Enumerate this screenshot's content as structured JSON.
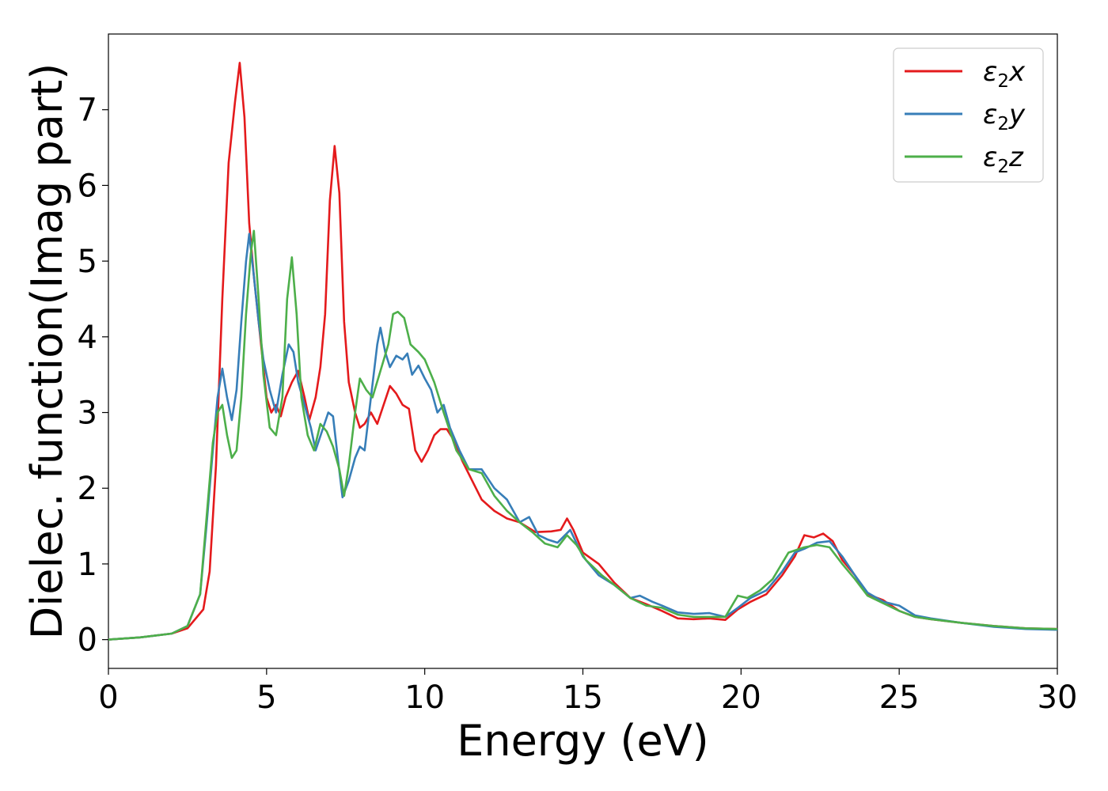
{
  "chart_data": {
    "type": "line",
    "title": "",
    "xlabel": "Energy (eV)",
    "ylabel": "Dielec. function(Imag part)",
    "xlim": [
      0,
      30
    ],
    "ylim": [
      -0.38,
      8.0
    ],
    "xticks": [
      0,
      5,
      10,
      15,
      20,
      25,
      30
    ],
    "yticks": [
      0,
      1,
      2,
      3,
      4,
      5,
      6,
      7
    ],
    "grid": false,
    "legend_position": "top-right",
    "series": [
      {
        "name": "ε₂x",
        "legend_main": "ε",
        "legend_sub": "2",
        "legend_axis": "x",
        "color": "#e41a1c",
        "points": [
          [
            0,
            0.0
          ],
          [
            1,
            0.03
          ],
          [
            2,
            0.08
          ],
          [
            2.5,
            0.15
          ],
          [
            3.0,
            0.4
          ],
          [
            3.2,
            0.9
          ],
          [
            3.4,
            2.3
          ],
          [
            3.6,
            4.5
          ],
          [
            3.8,
            6.3
          ],
          [
            4.0,
            7.1
          ],
          [
            4.15,
            7.62
          ],
          [
            4.3,
            6.9
          ],
          [
            4.45,
            5.5
          ],
          [
            4.6,
            4.8
          ],
          [
            4.8,
            4.0
          ],
          [
            5.0,
            3.2
          ],
          [
            5.15,
            3.0
          ],
          [
            5.3,
            3.1
          ],
          [
            5.45,
            2.95
          ],
          [
            5.6,
            3.2
          ],
          [
            5.8,
            3.4
          ],
          [
            6.0,
            3.55
          ],
          [
            6.2,
            3.2
          ],
          [
            6.35,
            2.9
          ],
          [
            6.55,
            3.2
          ],
          [
            6.7,
            3.6
          ],
          [
            6.85,
            4.3
          ],
          [
            7.0,
            5.8
          ],
          [
            7.15,
            6.52
          ],
          [
            7.3,
            5.9
          ],
          [
            7.45,
            4.2
          ],
          [
            7.6,
            3.4
          ],
          [
            7.8,
            3.0
          ],
          [
            7.95,
            2.8
          ],
          [
            8.1,
            2.85
          ],
          [
            8.3,
            3.0
          ],
          [
            8.5,
            2.85
          ],
          [
            8.7,
            3.1
          ],
          [
            8.9,
            3.35
          ],
          [
            9.1,
            3.25
          ],
          [
            9.3,
            3.1
          ],
          [
            9.5,
            3.05
          ],
          [
            9.7,
            2.5
          ],
          [
            9.9,
            2.35
          ],
          [
            10.1,
            2.5
          ],
          [
            10.3,
            2.7
          ],
          [
            10.5,
            2.78
          ],
          [
            10.7,
            2.78
          ],
          [
            10.9,
            2.65
          ],
          [
            11.2,
            2.35
          ],
          [
            11.5,
            2.1
          ],
          [
            11.8,
            1.85
          ],
          [
            12.2,
            1.7
          ],
          [
            12.6,
            1.6
          ],
          [
            13.0,
            1.55
          ],
          [
            13.5,
            1.42
          ],
          [
            14.0,
            1.43
          ],
          [
            14.3,
            1.45
          ],
          [
            14.5,
            1.6
          ],
          [
            14.7,
            1.45
          ],
          [
            15.0,
            1.15
          ],
          [
            15.5,
            1.0
          ],
          [
            16.0,
            0.75
          ],
          [
            16.5,
            0.55
          ],
          [
            17.0,
            0.47
          ],
          [
            17.5,
            0.38
          ],
          [
            18.0,
            0.28
          ],
          [
            18.5,
            0.27
          ],
          [
            19.0,
            0.28
          ],
          [
            19.5,
            0.26
          ],
          [
            19.9,
            0.4
          ],
          [
            20.3,
            0.5
          ],
          [
            20.8,
            0.6
          ],
          [
            21.3,
            0.85
          ],
          [
            21.7,
            1.1
          ],
          [
            22.0,
            1.38
          ],
          [
            22.3,
            1.35
          ],
          [
            22.6,
            1.4
          ],
          [
            22.9,
            1.3
          ],
          [
            23.2,
            1.05
          ],
          [
            23.6,
            0.85
          ],
          [
            24.0,
            0.6
          ],
          [
            24.5,
            0.52
          ],
          [
            25.0,
            0.38
          ],
          [
            25.5,
            0.3
          ],
          [
            26.0,
            0.27
          ],
          [
            27.0,
            0.22
          ],
          [
            28.0,
            0.18
          ],
          [
            29.0,
            0.15
          ],
          [
            30.0,
            0.14
          ]
        ]
      },
      {
        "name": "ε₂y",
        "legend_main": "ε",
        "legend_sub": "2",
        "legend_axis": "y",
        "color": "#377eb8",
        "points": [
          [
            0,
            0.0
          ],
          [
            1,
            0.03
          ],
          [
            2,
            0.08
          ],
          [
            2.5,
            0.18
          ],
          [
            2.9,
            0.6
          ],
          [
            3.1,
            1.5
          ],
          [
            3.3,
            2.5
          ],
          [
            3.45,
            3.2
          ],
          [
            3.6,
            3.58
          ],
          [
            3.75,
            3.2
          ],
          [
            3.9,
            2.9
          ],
          [
            4.05,
            3.3
          ],
          [
            4.2,
            4.2
          ],
          [
            4.35,
            5.0
          ],
          [
            4.45,
            5.36
          ],
          [
            4.6,
            4.8
          ],
          [
            4.75,
            4.2
          ],
          [
            4.9,
            3.7
          ],
          [
            5.1,
            3.3
          ],
          [
            5.3,
            3.0
          ],
          [
            5.5,
            3.5
          ],
          [
            5.7,
            3.9
          ],
          [
            5.85,
            3.8
          ],
          [
            6.0,
            3.4
          ],
          [
            6.2,
            3.1
          ],
          [
            6.4,
            2.8
          ],
          [
            6.55,
            2.5
          ],
          [
            6.75,
            2.75
          ],
          [
            6.95,
            3.0
          ],
          [
            7.1,
            2.95
          ],
          [
            7.25,
            2.4
          ],
          [
            7.4,
            1.88
          ],
          [
            7.6,
            2.1
          ],
          [
            7.8,
            2.4
          ],
          [
            7.95,
            2.55
          ],
          [
            8.1,
            2.5
          ],
          [
            8.3,
            3.2
          ],
          [
            8.5,
            3.9
          ],
          [
            8.6,
            4.12
          ],
          [
            8.75,
            3.8
          ],
          [
            8.9,
            3.6
          ],
          [
            9.1,
            3.75
          ],
          [
            9.3,
            3.7
          ],
          [
            9.45,
            3.78
          ],
          [
            9.6,
            3.5
          ],
          [
            9.8,
            3.62
          ],
          [
            10.0,
            3.45
          ],
          [
            10.2,
            3.3
          ],
          [
            10.4,
            3.0
          ],
          [
            10.6,
            3.1
          ],
          [
            10.8,
            2.8
          ],
          [
            11.1,
            2.5
          ],
          [
            11.4,
            2.25
          ],
          [
            11.8,
            2.25
          ],
          [
            12.2,
            2.0
          ],
          [
            12.6,
            1.85
          ],
          [
            13.0,
            1.55
          ],
          [
            13.3,
            1.62
          ],
          [
            13.6,
            1.38
          ],
          [
            13.9,
            1.32
          ],
          [
            14.2,
            1.28
          ],
          [
            14.6,
            1.45
          ],
          [
            15.0,
            1.1
          ],
          [
            15.5,
            0.85
          ],
          [
            16.0,
            0.72
          ],
          [
            16.5,
            0.55
          ],
          [
            16.8,
            0.58
          ],
          [
            17.2,
            0.5
          ],
          [
            17.5,
            0.45
          ],
          [
            18.0,
            0.36
          ],
          [
            18.5,
            0.34
          ],
          [
            19.0,
            0.35
          ],
          [
            19.5,
            0.3
          ],
          [
            19.9,
            0.42
          ],
          [
            20.3,
            0.55
          ],
          [
            20.8,
            0.65
          ],
          [
            21.3,
            0.9
          ],
          [
            21.7,
            1.15
          ],
          [
            22.0,
            1.2
          ],
          [
            22.4,
            1.28
          ],
          [
            22.8,
            1.3
          ],
          [
            23.2,
            1.1
          ],
          [
            23.6,
            0.85
          ],
          [
            24.0,
            0.62
          ],
          [
            24.5,
            0.5
          ],
          [
            25.0,
            0.45
          ],
          [
            25.5,
            0.32
          ],
          [
            26.0,
            0.28
          ],
          [
            27.0,
            0.22
          ],
          [
            28.0,
            0.17
          ],
          [
            29.0,
            0.14
          ],
          [
            30.0,
            0.13
          ]
        ]
      },
      {
        "name": "ε₂z",
        "legend_main": "ε",
        "legend_sub": "2",
        "legend_axis": "z",
        "color": "#4daf4a",
        "points": [
          [
            0,
            0.0
          ],
          [
            1,
            0.03
          ],
          [
            2,
            0.08
          ],
          [
            2.5,
            0.18
          ],
          [
            2.9,
            0.6
          ],
          [
            3.1,
            1.6
          ],
          [
            3.3,
            2.6
          ],
          [
            3.45,
            3.0
          ],
          [
            3.6,
            3.1
          ],
          [
            3.75,
            2.7
          ],
          [
            3.9,
            2.4
          ],
          [
            4.05,
            2.5
          ],
          [
            4.2,
            3.2
          ],
          [
            4.35,
            4.3
          ],
          [
            4.5,
            5.1
          ],
          [
            4.6,
            5.4
          ],
          [
            4.75,
            4.5
          ],
          [
            4.9,
            3.5
          ],
          [
            5.1,
            2.8
          ],
          [
            5.3,
            2.7
          ],
          [
            5.5,
            3.2
          ],
          [
            5.65,
            4.5
          ],
          [
            5.8,
            5.05
          ],
          [
            5.95,
            4.3
          ],
          [
            6.1,
            3.2
          ],
          [
            6.3,
            2.7
          ],
          [
            6.5,
            2.5
          ],
          [
            6.7,
            2.85
          ],
          [
            6.9,
            2.75
          ],
          [
            7.1,
            2.55
          ],
          [
            7.3,
            2.25
          ],
          [
            7.45,
            1.9
          ],
          [
            7.6,
            2.3
          ],
          [
            7.8,
            3.0
          ],
          [
            7.95,
            3.45
          ],
          [
            8.15,
            3.3
          ],
          [
            8.35,
            3.2
          ],
          [
            8.6,
            3.55
          ],
          [
            8.85,
            3.9
          ],
          [
            9.0,
            4.3
          ],
          [
            9.15,
            4.33
          ],
          [
            9.35,
            4.25
          ],
          [
            9.55,
            3.9
          ],
          [
            9.8,
            3.8
          ],
          [
            10.0,
            3.7
          ],
          [
            10.3,
            3.4
          ],
          [
            10.6,
            3.0
          ],
          [
            11.0,
            2.5
          ],
          [
            11.4,
            2.25
          ],
          [
            11.8,
            2.2
          ],
          [
            12.2,
            1.9
          ],
          [
            12.6,
            1.7
          ],
          [
            13.0,
            1.55
          ],
          [
            13.4,
            1.42
          ],
          [
            13.8,
            1.27
          ],
          [
            14.2,
            1.22
          ],
          [
            14.5,
            1.38
          ],
          [
            14.8,
            1.25
          ],
          [
            15.1,
            1.05
          ],
          [
            15.6,
            0.85
          ],
          [
            16.0,
            0.72
          ],
          [
            16.5,
            0.55
          ],
          [
            17.0,
            0.45
          ],
          [
            17.5,
            0.42
          ],
          [
            18.0,
            0.33
          ],
          [
            18.5,
            0.3
          ],
          [
            19.0,
            0.3
          ],
          [
            19.5,
            0.3
          ],
          [
            19.9,
            0.58
          ],
          [
            20.2,
            0.55
          ],
          [
            20.6,
            0.65
          ],
          [
            21.0,
            0.8
          ],
          [
            21.5,
            1.15
          ],
          [
            22.0,
            1.22
          ],
          [
            22.4,
            1.25
          ],
          [
            22.8,
            1.22
          ],
          [
            23.2,
            1.0
          ],
          [
            23.6,
            0.8
          ],
          [
            24.0,
            0.58
          ],
          [
            24.5,
            0.48
          ],
          [
            25.0,
            0.38
          ],
          [
            25.5,
            0.3
          ],
          [
            26.0,
            0.27
          ],
          [
            27.0,
            0.22
          ],
          [
            28.0,
            0.18
          ],
          [
            29.0,
            0.15
          ],
          [
            30.0,
            0.14
          ]
        ]
      }
    ]
  }
}
